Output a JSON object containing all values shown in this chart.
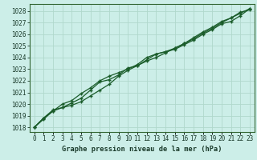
{
  "title": "Graphe pression niveau de la mer (hPa)",
  "background_color": "#cceee8",
  "grid_color": "#b0d8cc",
  "line_color": "#1a5c2a",
  "x_labels": [
    "0",
    "1",
    "2",
    "3",
    "4",
    "5",
    "6",
    "7",
    "8",
    "9",
    "10",
    "11",
    "12",
    "13",
    "14",
    "15",
    "16",
    "17",
    "18",
    "19",
    "20",
    "21",
    "22",
    "23"
  ],
  "ylim": [
    1017.6,
    1028.6
  ],
  "xlim": [
    -0.5,
    23.5
  ],
  "yticks": [
    1018,
    1019,
    1020,
    1021,
    1022,
    1023,
    1024,
    1025,
    1026,
    1027,
    1028
  ],
  "line1": [
    1018.0,
    1018.7,
    1019.4,
    1019.7,
    1019.9,
    1020.2,
    1020.7,
    1021.2,
    1021.7,
    1022.4,
    1022.9,
    1023.3,
    1023.7,
    1024.0,
    1024.4,
    1024.8,
    1025.2,
    1025.6,
    1026.1,
    1026.5,
    1027.0,
    1027.4,
    1027.8,
    1028.2
  ],
  "line2": [
    1018.0,
    1018.8,
    1019.4,
    1020.0,
    1020.3,
    1020.9,
    1021.4,
    1022.0,
    1022.4,
    1022.7,
    1023.0,
    1023.4,
    1024.0,
    1024.3,
    1024.5,
    1024.8,
    1025.2,
    1025.7,
    1026.2,
    1026.6,
    1027.1,
    1027.4,
    1027.9,
    1028.1
  ],
  "line3": [
    1018.0,
    1018.8,
    1019.5,
    1019.7,
    1020.1,
    1020.5,
    1021.2,
    1021.9,
    1022.1,
    1022.5,
    1023.1,
    1023.3,
    1023.8,
    1024.3,
    1024.5,
    1024.7,
    1025.1,
    1025.5,
    1026.0,
    1026.4,
    1026.9,
    1027.1,
    1027.6,
    1028.2
  ],
  "tick_fontsize": 5.5,
  "label_fontsize": 6.2,
  "spine_color": "#336633",
  "tick_color": "#1a3a2a"
}
